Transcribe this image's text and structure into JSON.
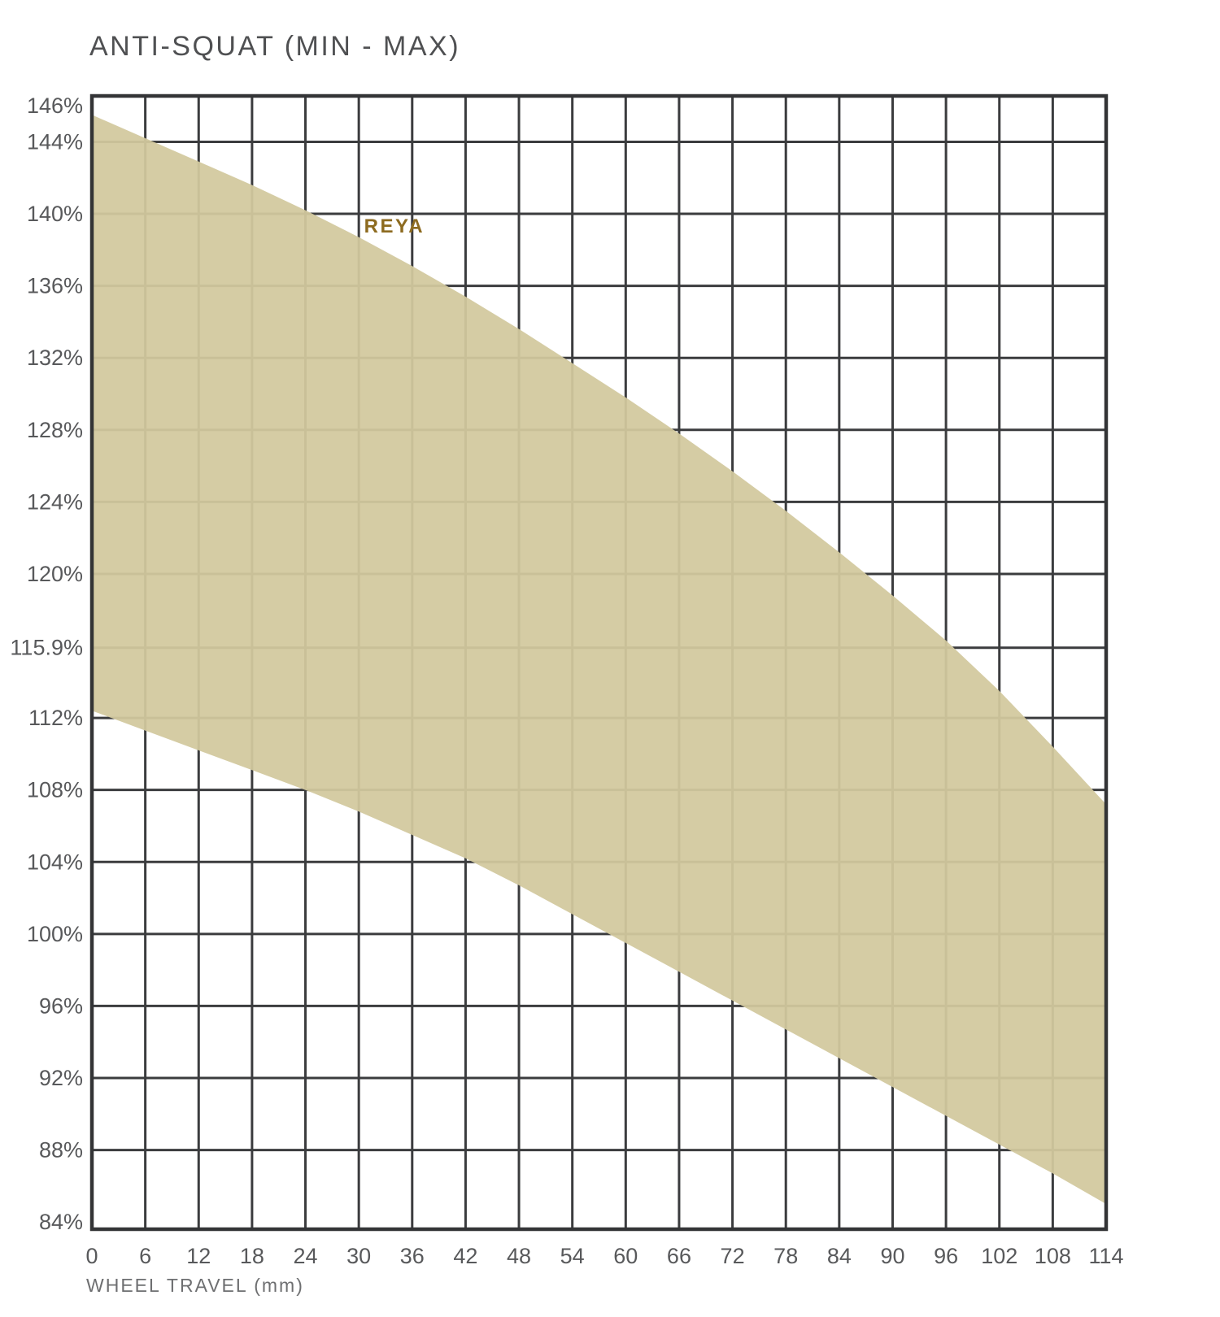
{
  "chart_data": {
    "type": "area",
    "title": "ANTI-SQUAT (MIN - MAX)",
    "xlabel": "WHEEL TRAVEL (mm)",
    "grid": "on",
    "legend_position": "none",
    "xlim": [
      0,
      114
    ],
    "ylim": [
      83.6,
      146.55
    ],
    "x": [
      0,
      6,
      12,
      18,
      24,
      30,
      36,
      42,
      48,
      54,
      60,
      66,
      72,
      78,
      84,
      90,
      96,
      102,
      108,
      114
    ],
    "series": [
      {
        "name": "MAX",
        "values": [
          145.5,
          144.2,
          142.9,
          141.6,
          140.2,
          138.7,
          137.1,
          135.4,
          133.6,
          131.7,
          129.8,
          127.8,
          125.7,
          123.5,
          121.2,
          118.8,
          116.3,
          113.5,
          110.4,
          107.2
        ]
      },
      {
        "name": "MIN",
        "values": [
          112.4,
          111.3,
          110.2,
          109.1,
          108.0,
          106.8,
          105.5,
          104.2,
          102.7,
          101.1,
          99.5,
          97.9,
          96.3,
          94.7,
          93.1,
          91.5,
          89.9,
          88.3,
          86.7,
          85.0
        ]
      }
    ],
    "x_ticks": [
      {
        "label": "0",
        "value": 0
      },
      {
        "label": "6",
        "value": 6
      },
      {
        "label": "12",
        "value": 12
      },
      {
        "label": "18",
        "value": 18
      },
      {
        "label": "24",
        "value": 24
      },
      {
        "label": "30",
        "value": 30
      },
      {
        "label": "36",
        "value": 36
      },
      {
        "label": "42",
        "value": 42
      },
      {
        "label": "48",
        "value": 48
      },
      {
        "label": "54",
        "value": 54
      },
      {
        "label": "60",
        "value": 60
      },
      {
        "label": "66",
        "value": 66
      },
      {
        "label": "72",
        "value": 72
      },
      {
        "label": "78",
        "value": 78
      },
      {
        "label": "84",
        "value": 84
      },
      {
        "label": "90",
        "value": 90
      },
      {
        "label": "96",
        "value": 96
      },
      {
        "label": "102",
        "value": 102
      },
      {
        "label": "108",
        "value": 108
      },
      {
        "label": "114",
        "value": 114
      }
    ],
    "y_ticks": [
      {
        "label": "146%",
        "value": 146,
        "line": false
      },
      {
        "label": "144%",
        "value": 144,
        "line": true
      },
      {
        "label": "140%",
        "value": 140,
        "line": true
      },
      {
        "label": "136%",
        "value": 136,
        "line": true
      },
      {
        "label": "132%",
        "value": 132,
        "line": true
      },
      {
        "label": "128%",
        "value": 128,
        "line": true
      },
      {
        "label": "124%",
        "value": 124,
        "line": true
      },
      {
        "label": "120%",
        "value": 120,
        "line": true
      },
      {
        "label": "115.9%",
        "value": 115.9,
        "line": true
      },
      {
        "label": "112%",
        "value": 112,
        "line": true
      },
      {
        "label": "108%",
        "value": 108,
        "line": true
      },
      {
        "label": "104%",
        "value": 104,
        "line": true
      },
      {
        "label": "100%",
        "value": 100,
        "line": true
      },
      {
        "label": "96%",
        "value": 96,
        "line": true
      },
      {
        "label": "92%",
        "value": 92,
        "line": true
      },
      {
        "label": "88%",
        "value": 88,
        "line": true
      },
      {
        "label": "84%",
        "value": 84,
        "line": false
      }
    ],
    "annotation": {
      "text": "REYA",
      "x": 34,
      "y": 139.3
    },
    "colors": {
      "band": "#d2c99e",
      "band_opacity": 0.94,
      "grid": "#3b3c3e",
      "frame": "#333436",
      "title": "#4f5052",
      "tick_label": "#58595b",
      "axis_label": "#6e6f71",
      "annotation": "#8d6b20",
      "background": "#ffffff"
    }
  }
}
